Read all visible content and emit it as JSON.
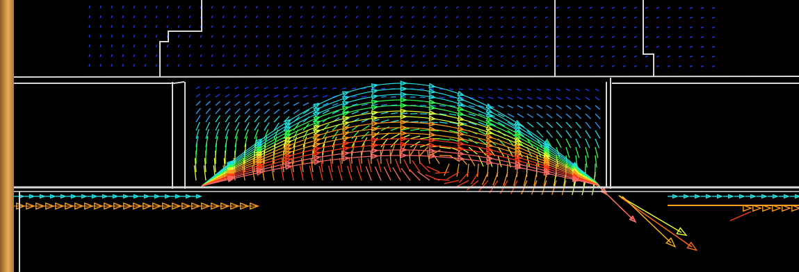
{
  "image": {
    "subject": "flow-velocity-vector-field",
    "background_color": "#000000",
    "wall_color": "#d9d9d9",
    "left_edge_color": "#c98f3e",
    "colormap": [
      "#1f3cff",
      "#2aa0ff",
      "#22e0e0",
      "#33ff55",
      "#e8ff33",
      "#ff9a1a",
      "#ff3a1a",
      "#ff6a6a"
    ]
  }
}
